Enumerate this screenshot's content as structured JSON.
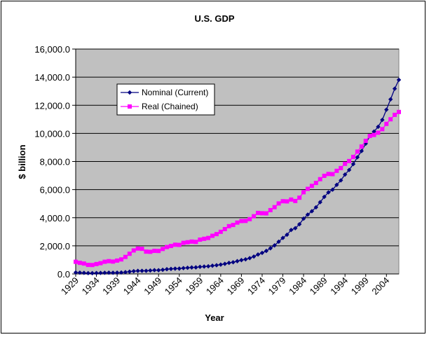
{
  "chart_data": {
    "type": "line",
    "title": "U.S. GDP",
    "xlabel": "Year",
    "ylabel": "$ billion",
    "ylim": [
      0,
      16000
    ],
    "y_ticks": [
      0,
      2000,
      4000,
      6000,
      8000,
      10000,
      12000,
      14000,
      16000
    ],
    "y_tick_labels": [
      "0.0",
      "2,000.0",
      "4,000.0",
      "6,000.0",
      "8,000.0",
      "10,000.0",
      "12,000.0",
      "14,000.0",
      "16,000.0"
    ],
    "x_tick_labels": [
      "1929",
      "1934",
      "1939",
      "1944",
      "1949",
      "1954",
      "1959",
      "1964",
      "1969",
      "1974",
      "1979",
      "1984",
      "1989",
      "1994",
      "1999",
      "2004"
    ],
    "grid": "horizontal",
    "legend_position": "upper-left",
    "plot_background": "#c0c0c0",
    "x": [
      1929,
      1930,
      1931,
      1932,
      1933,
      1934,
      1935,
      1936,
      1937,
      1938,
      1939,
      1940,
      1941,
      1942,
      1943,
      1944,
      1945,
      1946,
      1947,
      1948,
      1949,
      1950,
      1951,
      1952,
      1953,
      1954,
      1955,
      1956,
      1957,
      1958,
      1959,
      1960,
      1961,
      1962,
      1963,
      1964,
      1965,
      1966,
      1967,
      1968,
      1969,
      1970,
      1971,
      1972,
      1973,
      1974,
      1975,
      1976,
      1977,
      1978,
      1979,
      1980,
      1981,
      1982,
      1983,
      1984,
      1985,
      1986,
      1987,
      1988,
      1989,
      1990,
      1991,
      1992,
      1993,
      1994,
      1995,
      1996,
      1997,
      1998,
      1999,
      2000,
      2001,
      2002,
      2003,
      2004,
      2005,
      2006,
      2007
    ],
    "series": [
      {
        "name": "Nominal (Current)",
        "color": "#000080",
        "marker": "diamond",
        "values": [
          103.6,
          91.2,
          76.5,
          58.7,
          56.4,
          66.0,
          73.3,
          83.8,
          91.9,
          86.1,
          92.2,
          101.4,
          126.7,
          161.9,
          198.6,
          219.8,
          223.0,
          222.2,
          244.1,
          269.1,
          267.2,
          293.7,
          339.3,
          358.3,
          379.3,
          380.4,
          414.7,
          437.4,
          461.1,
          467.2,
          506.6,
          526.4,
          544.8,
          585.7,
          617.8,
          663.6,
          719.1,
          787.8,
          832.6,
          910.0,
          984.6,
          1038.5,
          1127.1,
          1238.3,
          1382.7,
          1500.0,
          1638.3,
          1825.3,
          2030.9,
          2294.7,
          2563.3,
          2789.5,
          3128.4,
          3255.0,
          3536.7,
          3933.2,
          4220.3,
          4462.8,
          4739.5,
          5103.8,
          5484.4,
          5803.1,
          5995.9,
          6337.7,
          6657.4,
          7072.2,
          7397.7,
          7816.9,
          8304.3,
          8747.0,
          9268.4,
          9817.0,
          10128.0,
          10469.6,
          10960.8,
          11685.9,
          12421.9,
          13178.4,
          13807.5
        ]
      },
      {
        "name": "Real (Chained)",
        "color": "#ff00ff",
        "marker": "square",
        "values": [
          865.2,
          790.7,
          739.9,
          643.7,
          635.5,
          704.2,
          766.9,
          866.6,
          911.1,
          879.7,
          950.7,
          1034.1,
          1211.1,
          1435.4,
          1670.9,
          1806.5,
          1786.3,
          1589.4,
          1574.5,
          1643.2,
          1634.6,
          1777.3,
          1915.0,
          1988.3,
          2079.5,
          2065.4,
          2212.8,
          2255.8,
          2301.1,
          2279.2,
          2441.3,
          2501.8,
          2560.0,
          2715.2,
          2834.0,
          2998.6,
          3191.1,
          3399.1,
          3484.6,
          3652.7,
          3765.4,
          3771.9,
          3898.6,
          4105.0,
          4341.5,
          4319.6,
          4311.2,
          4540.9,
          4750.5,
          5015.0,
          5173.4,
          5161.7,
          5291.7,
          5189.3,
          5423.8,
          5813.6,
          6053.7,
          6263.6,
          6475.1,
          6742.7,
          6981.4,
          7112.5,
          7100.5,
          7336.6,
          7532.7,
          7835.5,
          8031.7,
          8328.9,
          8703.5,
          9066.9,
          9470.3,
          9817.0,
          9890.7,
          10048.8,
          10301.0,
          10675.8,
          11003.4,
          11319.4,
          11523.9
        ]
      }
    ]
  }
}
